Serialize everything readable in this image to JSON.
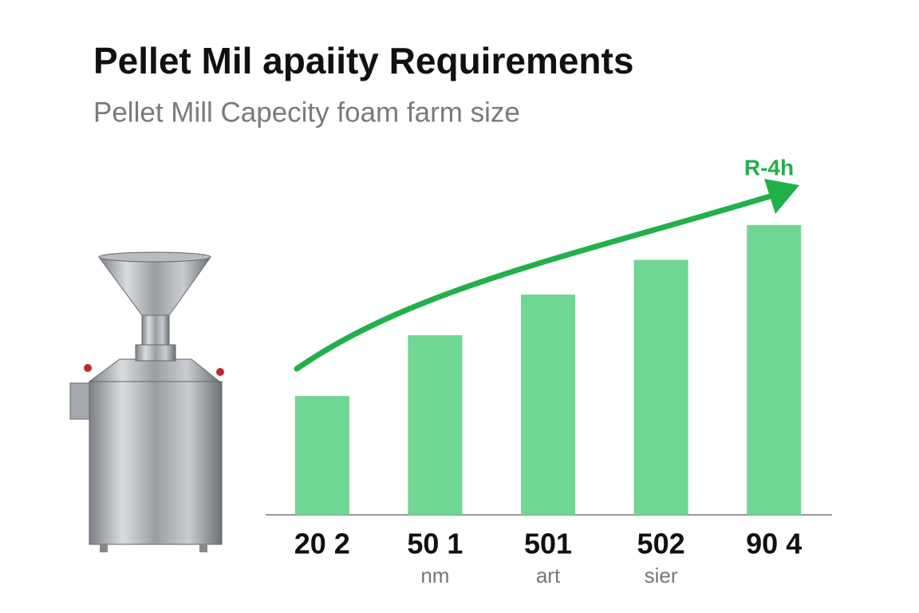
{
  "chart_data": {
    "type": "bar",
    "title": "Pellet Mil apaiity Requirements",
    "subtitle": "Pellet Mill Capecity foam farm size",
    "annotation": "R-4h",
    "categories": [
      "20 2",
      "50 1",
      "501",
      "502",
      "90 4"
    ],
    "sublabels": [
      null,
      "nm",
      "art",
      "sier",
      null
    ],
    "values": [
      41,
      62,
      76,
      88,
      100
    ],
    "color": "#6fd694",
    "trend_color": "#22b04b"
  }
}
